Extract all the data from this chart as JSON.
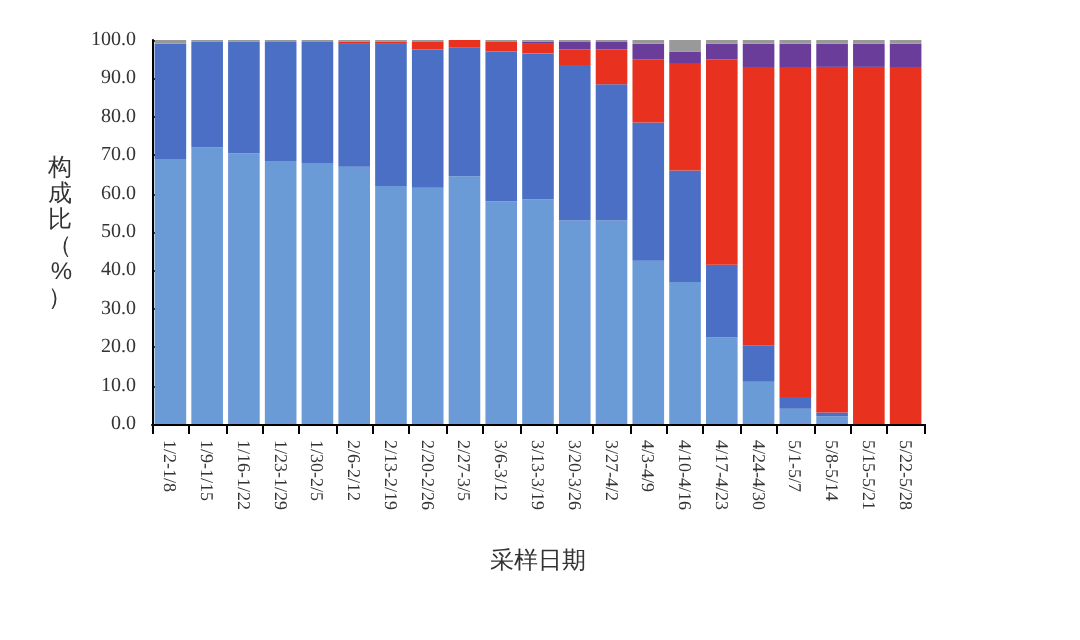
{
  "chart_data": {
    "type": "bar",
    "stacked": true,
    "xlabel": "采样日期",
    "ylabel": "构成比（%）",
    "categories": [
      "1/2-1/8",
      "1/9-1/15",
      "1/16-1/22",
      "1/23-1/29",
      "1/30-2/5",
      "2/6-2/12",
      "2/13-2/19",
      "2/20-2/26",
      "2/27-3/5",
      "3/6-3/12",
      "3/13-3/19",
      "3/20-3/26",
      "3/27-4/2",
      "4/3-4/9",
      "4/10-4/16",
      "4/17-4/23",
      "4/24-4/30",
      "5/1-5/7",
      "5/8-5/14",
      "5/15-5/21",
      "5/22-5/28"
    ],
    "series": [
      {
        "color": "#6b9bd6",
        "values": [
          69,
          72,
          70.5,
          68.5,
          68,
          67,
          62,
          61.5,
          64.5,
          58,
          58.5,
          53,
          53,
          42.5,
          37,
          22.5,
          11,
          4,
          2,
          0,
          0
        ]
      },
      {
        "color": "#4a6fc4",
        "values": [
          30,
          27.5,
          29,
          31,
          31.5,
          32,
          37,
          36,
          33.5,
          39,
          38,
          40.5,
          35.5,
          36,
          29,
          19,
          9.5,
          3,
          1,
          0,
          0
        ]
      },
      {
        "color": "#e8321f",
        "values": [
          0,
          0,
          0,
          0,
          0,
          0.5,
          0.5,
          2,
          2,
          2.5,
          2.5,
          4,
          9,
          16.5,
          28,
          53.5,
          72.5,
          86,
          90,
          93,
          93
        ]
      },
      {
        "color": "#6a3d9a",
        "values": [
          0,
          0,
          0,
          0,
          0,
          0,
          0,
          0,
          0,
          0,
          0.5,
          2,
          2,
          4,
          3,
          4,
          6,
          6,
          6,
          6,
          6
        ]
      },
      {
        "color": "#999999",
        "values": [
          1,
          0.5,
          0.5,
          0.5,
          0.5,
          0.5,
          0.5,
          0.5,
          0,
          0.5,
          0.5,
          0.5,
          0.5,
          1,
          3,
          1,
          1,
          1,
          1,
          1,
          1
        ]
      }
    ],
    "ylim": [
      0,
      100
    ],
    "yticks": [
      {
        "value": 0,
        "label": "0.0"
      },
      {
        "value": 10,
        "label": "10.0"
      },
      {
        "value": 20,
        "label": "20.0"
      },
      {
        "value": 30,
        "label": "30.0"
      },
      {
        "value": 40,
        "label": "40.0"
      },
      {
        "value": 50,
        "label": "50.0"
      },
      {
        "value": 60,
        "label": "60.0"
      },
      {
        "value": 70,
        "label": "70.0"
      },
      {
        "value": 80,
        "label": "80.0"
      },
      {
        "value": 90,
        "label": "90.0"
      },
      {
        "value": 100,
        "label": "100.0"
      }
    ],
    "grid": false
  }
}
